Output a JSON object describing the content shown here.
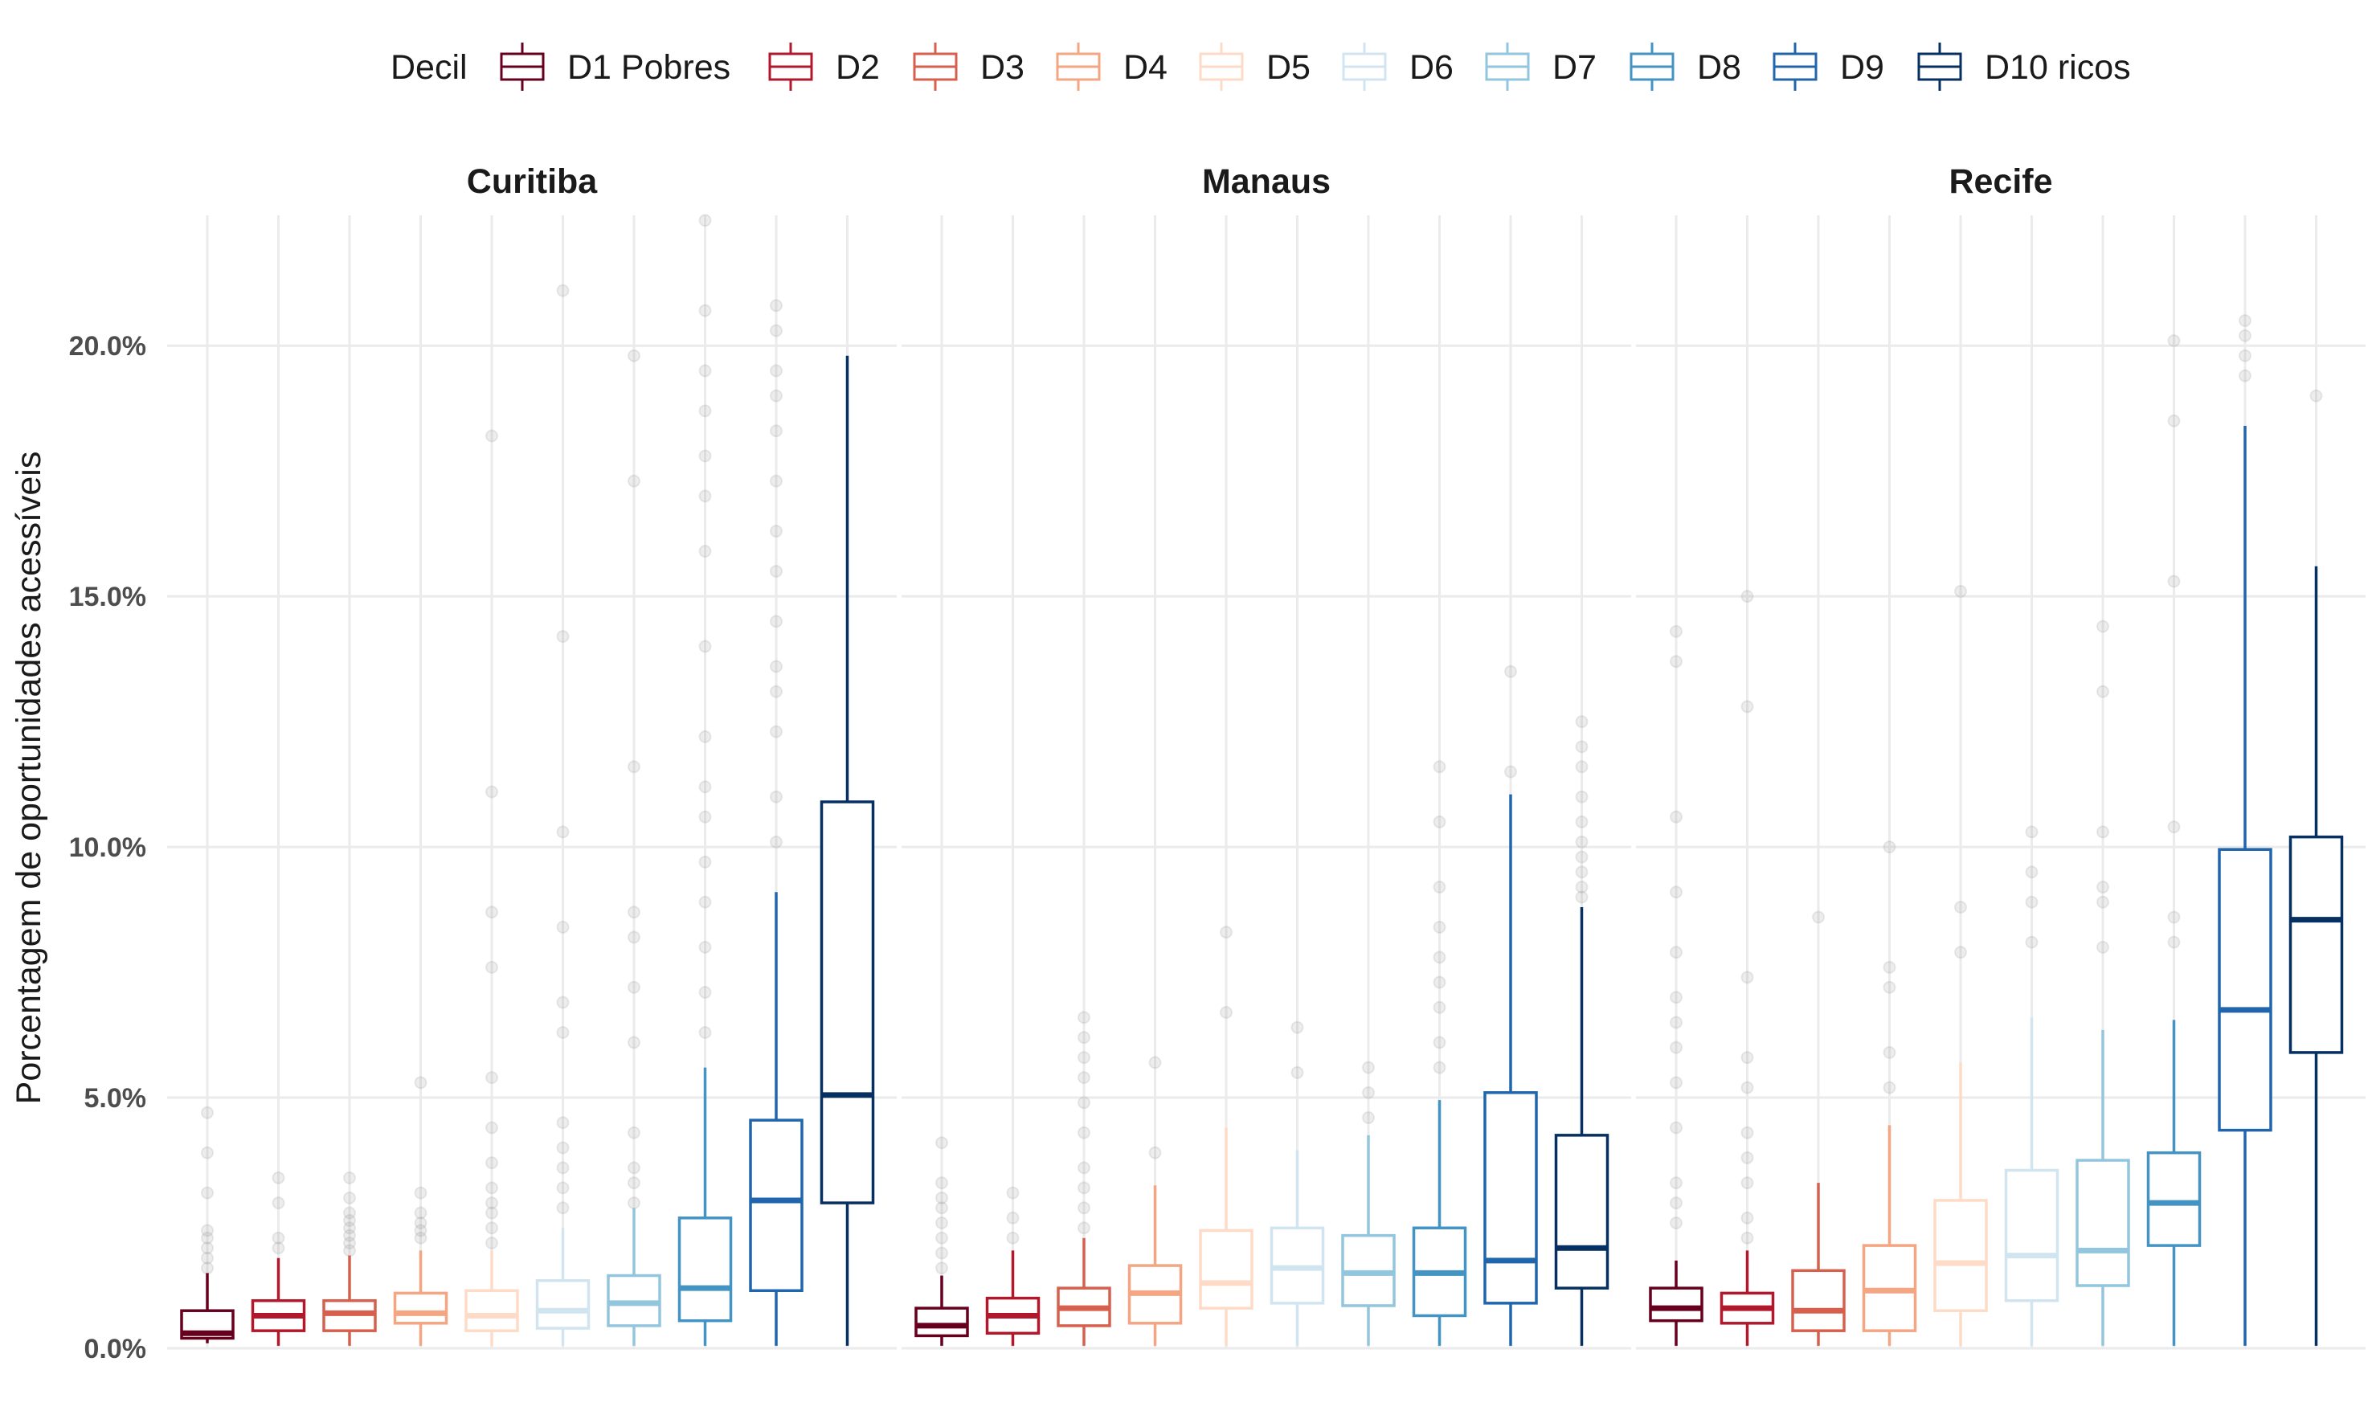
{
  "chart_data": {
    "type": "boxplot",
    "legend": {
      "title": "Decil",
      "position": "top"
    },
    "ylabel": "Porcentagem de oportunidades acessíveis",
    "xlabel": "",
    "ylim": [
      0,
      22.6
    ],
    "yticks": [
      0,
      5,
      10,
      15,
      20
    ],
    "ytick_labels": [
      "0.0%",
      "5.0%",
      "10.0%",
      "15.0%",
      "20.0%"
    ],
    "grid": true,
    "categories": [
      "D1 Pobres",
      "D2",
      "D3",
      "D4",
      "D5",
      "D6",
      "D7",
      "D8",
      "D9",
      "D10 ricos"
    ],
    "colors": [
      "#67001f",
      "#b2182b",
      "#d6604d",
      "#f4a582",
      "#fddbc7",
      "#d1e5f0",
      "#92c5de",
      "#4393c3",
      "#2166ac",
      "#053061"
    ],
    "panels": [
      {
        "title": "Curitiba",
        "boxes": [
          {
            "min": 0.1,
            "q1": 0.2,
            "median": 0.3,
            "q3": 0.75,
            "max": 1.5,
            "outliers": [
              1.6,
              1.8,
              2.0,
              2.2,
              2.35,
              3.1,
              3.9,
              4.7
            ]
          },
          {
            "min": 0.05,
            "q1": 0.35,
            "median": 0.65,
            "q3": 0.95,
            "max": 1.8,
            "outliers": [
              2.0,
              2.2,
              2.9,
              3.4
            ]
          },
          {
            "min": 0.05,
            "q1": 0.35,
            "median": 0.7,
            "q3": 0.95,
            "max": 1.85,
            "outliers": [
              1.95,
              2.1,
              2.25,
              2.4,
              2.55,
              2.7,
              3.0,
              3.4
            ]
          },
          {
            "min": 0.05,
            "q1": 0.5,
            "median": 0.7,
            "q3": 1.1,
            "max": 1.95,
            "outliers": [
              2.2,
              2.35,
              2.5,
              2.7,
              3.1,
              5.3
            ]
          },
          {
            "min": 0.05,
            "q1": 0.35,
            "median": 0.65,
            "q3": 1.15,
            "max": 1.95,
            "outliers": [
              2.1,
              2.4,
              2.7,
              2.9,
              3.2,
              3.7,
              4.4,
              5.4,
              7.6,
              8.7,
              11.1,
              18.2
            ]
          },
          {
            "min": 0.05,
            "q1": 0.4,
            "median": 0.75,
            "q3": 1.35,
            "max": 2.4,
            "outliers": [
              2.8,
              3.2,
              3.6,
              4.0,
              4.5,
              6.3,
              6.9,
              8.4,
              10.3,
              14.2,
              21.1
            ]
          },
          {
            "min": 0.05,
            "q1": 0.45,
            "median": 0.9,
            "q3": 1.45,
            "max": 2.8,
            "outliers": [
              2.9,
              3.3,
              3.6,
              4.3,
              6.1,
              7.2,
              8.2,
              8.7,
              11.6,
              17.3,
              19.8
            ]
          },
          {
            "min": 0.05,
            "q1": 0.55,
            "median": 1.2,
            "q3": 2.6,
            "max": 5.6,
            "outliers": [
              6.3,
              7.1,
              8.0,
              8.9,
              9.7,
              10.6,
              11.2,
              12.2,
              14.0,
              15.9,
              17.0,
              17.8,
              18.7,
              19.5,
              20.7,
              22.5
            ]
          },
          {
            "min": 0.05,
            "q1": 1.15,
            "median": 2.95,
            "q3": 4.55,
            "max": 9.1,
            "outliers": [
              10.1,
              11.0,
              12.3,
              13.1,
              13.6,
              14.5,
              15.5,
              16.3,
              17.3,
              18.3,
              19.0,
              19.5,
              20.3,
              20.8
            ]
          },
          {
            "min": 0.05,
            "q1": 2.9,
            "median": 5.05,
            "q3": 10.9,
            "max": 19.8,
            "outliers": []
          }
        ]
      },
      {
        "title": "Manaus",
        "boxes": [
          {
            "min": 0.05,
            "q1": 0.25,
            "median": 0.45,
            "q3": 0.8,
            "max": 1.45,
            "outliers": [
              1.6,
              1.9,
              2.2,
              2.5,
              2.8,
              3.0,
              3.3,
              4.1
            ]
          },
          {
            "min": 0.05,
            "q1": 0.3,
            "median": 0.65,
            "q3": 1.0,
            "max": 1.95,
            "outliers": [
              2.2,
              2.6,
              3.1
            ]
          },
          {
            "min": 0.05,
            "q1": 0.45,
            "median": 0.8,
            "q3": 1.2,
            "max": 2.2,
            "outliers": [
              2.4,
              2.8,
              3.2,
              3.6,
              4.3,
              4.9,
              5.4,
              5.8,
              6.2,
              6.6
            ]
          },
          {
            "min": 0.05,
            "q1": 0.5,
            "median": 1.1,
            "q3": 1.65,
            "max": 3.25,
            "outliers": [
              3.9,
              5.7
            ]
          },
          {
            "min": 0.05,
            "q1": 0.8,
            "median": 1.3,
            "q3": 2.35,
            "max": 4.4,
            "outliers": [
              6.7,
              8.3
            ]
          },
          {
            "min": 0.05,
            "q1": 0.9,
            "median": 1.6,
            "q3": 2.4,
            "max": 3.95,
            "outliers": [
              5.5,
              6.4
            ]
          },
          {
            "min": 0.05,
            "q1": 0.85,
            "median": 1.5,
            "q3": 2.25,
            "max": 4.25,
            "outliers": [
              4.6,
              5.1,
              5.6
            ]
          },
          {
            "min": 0.05,
            "q1": 0.65,
            "median": 1.5,
            "q3": 2.4,
            "max": 4.95,
            "outliers": [
              5.6,
              6.1,
              6.8,
              7.3,
              7.8,
              8.4,
              9.2,
              10.5,
              11.6
            ]
          },
          {
            "min": 0.05,
            "q1": 0.9,
            "median": 1.75,
            "q3": 5.1,
            "max": 11.05,
            "outliers": [
              11.5,
              13.5
            ]
          },
          {
            "min": 0.05,
            "q1": 1.2,
            "median": 2.0,
            "q3": 4.25,
            "max": 8.8,
            "outliers": [
              9.0,
              9.2,
              9.5,
              9.8,
              10.1,
              10.5,
              11.0,
              11.6,
              12.0,
              12.5
            ]
          }
        ]
      },
      {
        "title": "Recife",
        "boxes": [
          {
            "min": 0.05,
            "q1": 0.55,
            "median": 0.8,
            "q3": 1.2,
            "max": 1.75,
            "outliers": [
              2.5,
              2.9,
              3.3,
              4.4,
              5.3,
              6.0,
              6.5,
              7.0,
              7.9,
              9.1,
              10.6,
              13.7,
              14.3
            ]
          },
          {
            "min": 0.05,
            "q1": 0.5,
            "median": 0.8,
            "q3": 1.1,
            "max": 1.95,
            "outliers": [
              2.2,
              2.6,
              3.3,
              3.8,
              4.3,
              5.2,
              5.8,
              7.4,
              12.8,
              15.0
            ]
          },
          {
            "min": 0.05,
            "q1": 0.35,
            "median": 0.75,
            "q3": 1.55,
            "max": 3.3,
            "outliers": [
              8.6
            ]
          },
          {
            "min": 0.05,
            "q1": 0.35,
            "median": 1.15,
            "q3": 2.05,
            "max": 4.45,
            "outliers": [
              5.2,
              5.9,
              7.2,
              7.6,
              10.0
            ]
          },
          {
            "min": 0.05,
            "q1": 0.75,
            "median": 1.7,
            "q3": 2.95,
            "max": 5.7,
            "outliers": [
              7.9,
              8.8,
              15.1
            ]
          },
          {
            "min": 0.05,
            "q1": 0.95,
            "median": 1.85,
            "q3": 3.55,
            "max": 6.6,
            "outliers": [
              8.1,
              8.9,
              9.5,
              10.3
            ]
          },
          {
            "min": 0.05,
            "q1": 1.25,
            "median": 1.95,
            "q3": 3.75,
            "max": 6.35,
            "outliers": [
              8.0,
              8.9,
              9.2,
              10.3,
              13.1,
              14.4
            ]
          },
          {
            "min": 0.05,
            "q1": 2.05,
            "median": 2.9,
            "q3": 3.9,
            "max": 6.55,
            "outliers": [
              8.1,
              8.6,
              10.4,
              15.3,
              18.5,
              20.1
            ]
          },
          {
            "min": 0.05,
            "q1": 4.35,
            "median": 6.75,
            "q3": 9.95,
            "max": 18.4,
            "outliers": [
              19.4,
              19.8,
              20.2,
              20.5
            ]
          },
          {
            "min": 0.05,
            "q1": 5.9,
            "median": 8.55,
            "q3": 10.2,
            "max": 15.6,
            "outliers": [
              19.0
            ]
          }
        ]
      }
    ]
  }
}
